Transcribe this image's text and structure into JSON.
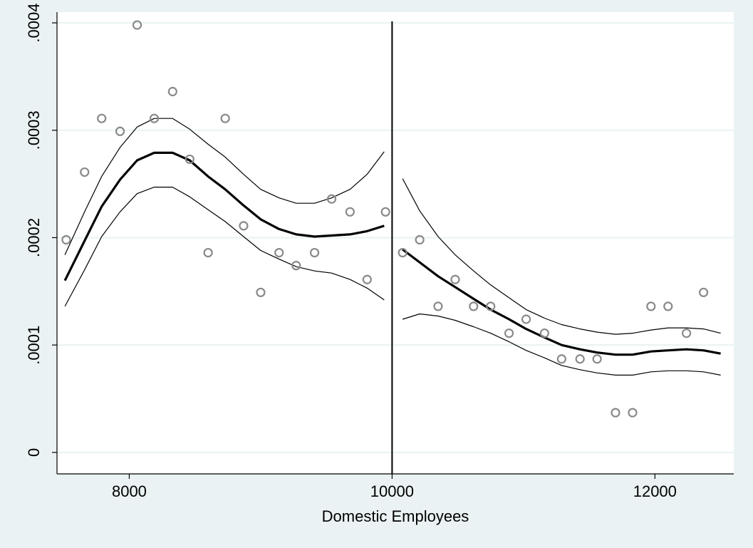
{
  "chart_data": {
    "type": "scatter",
    "title": "",
    "xlabel": "Domestic Employees",
    "ylabel": "",
    "xlim": [
      7450,
      12600
    ],
    "ylim": [
      -2e-05,
      0.00041
    ],
    "x_ticks": [
      8000,
      10000,
      12000
    ],
    "x_tick_labels": [
      "8000",
      "10000",
      "12000"
    ],
    "y_ticks": [
      0,
      0.0001,
      0.0002,
      0.0003,
      0.0004
    ],
    "y_tick_labels": [
      "0",
      ".0001",
      ".0002",
      ".0003",
      ".0004"
    ],
    "grid": true,
    "cutoff_x": 10000,
    "colors": {
      "background": "#eaf2f3",
      "plot_background": "#ffffff",
      "grid": "#eaf2f3",
      "points": "#8a8a8a",
      "fit": "#000000"
    },
    "series": [
      {
        "kind": "scatter",
        "points": [
          [
            7520,
            0.000198
          ],
          [
            7660,
            0.000261
          ],
          [
            7790,
            0.000311
          ],
          [
            7930,
            0.000299
          ],
          [
            8060,
            0.000398
          ],
          [
            8190,
            0.000311
          ],
          [
            8330,
            0.000336
          ],
          [
            8460,
            0.000273
          ],
          [
            8600,
            0.000186
          ],
          [
            8730,
            0.000311
          ],
          [
            8870,
            0.000211
          ],
          [
            9000,
            0.000149
          ],
          [
            9140,
            0.000186
          ],
          [
            9270,
            0.000174
          ],
          [
            9410,
            0.000186
          ],
          [
            9540,
            0.000236
          ],
          [
            9680,
            0.000224
          ],
          [
            9810,
            0.000161
          ],
          [
            9950,
            0.000224
          ],
          [
            10080,
            0.000186
          ],
          [
            10210,
            0.000198
          ],
          [
            10350,
            0.000136
          ],
          [
            10480,
            0.000161
          ],
          [
            10620,
            0.000136
          ],
          [
            10750,
            0.000136
          ],
          [
            10890,
            0.000111
          ],
          [
            11020,
            0.000124
          ],
          [
            11160,
            0.000111
          ],
          [
            11290,
            8.7e-05
          ],
          [
            11430,
            8.7e-05
          ],
          [
            11560,
            8.7e-05
          ],
          [
            11700,
            3.7e-05
          ],
          [
            11830,
            3.7e-05
          ],
          [
            11970,
            0.000136
          ],
          [
            12100,
            0.000136
          ],
          [
            12240,
            0.000111
          ],
          [
            12370,
            0.000149
          ]
        ]
      },
      {
        "kind": "fit",
        "segment": "left",
        "x": [
          7510,
          7660,
          7790,
          7930,
          8060,
          8190,
          8330,
          8460,
          8600,
          8730,
          8870,
          9000,
          9140,
          9270,
          9410,
          9540,
          9680,
          9810,
          9940
        ],
        "fit": [
          0.00016,
          0.000197,
          0.000229,
          0.000254,
          0.000272,
          0.000279,
          0.000279,
          0.000272,
          0.000257,
          0.000245,
          0.00023,
          0.000217,
          0.000208,
          0.000203,
          0.000201,
          0.000202,
          0.000203,
          0.000206,
          0.000211
        ],
        "upper": [
          0.000184,
          0.000224,
          0.000257,
          0.000284,
          0.000303,
          0.000311,
          0.000311,
          0.000301,
          0.000287,
          0.000275,
          0.000259,
          0.000245,
          0.000237,
          0.000232,
          0.000232,
          0.000237,
          0.000245,
          0.000259,
          0.00028
        ],
        "lower": [
          0.000136,
          0.00017,
          0.000201,
          0.000224,
          0.000241,
          0.000247,
          0.000247,
          0.000238,
          0.000226,
          0.000215,
          0.000201,
          0.000188,
          0.00018,
          0.000173,
          0.000169,
          0.000167,
          0.000161,
          0.000153,
          0.000142
        ]
      },
      {
        "kind": "fit",
        "segment": "right",
        "x": [
          10080,
          10210,
          10350,
          10480,
          10620,
          10750,
          10890,
          11020,
          11160,
          11290,
          11430,
          11560,
          11700,
          11830,
          11970,
          12100,
          12240,
          12370,
          12500
        ],
        "fit": [
          0.000189,
          0.000177,
          0.000164,
          0.000154,
          0.000143,
          0.000133,
          0.000124,
          0.000115,
          0.000107,
          0.0001,
          9.6e-05,
          9.3e-05,
          9.1e-05,
          9.1e-05,
          9.4e-05,
          9.5e-05,
          9.6e-05,
          9.5e-05,
          9.2e-05
        ],
        "upper": [
          0.000255,
          0.000225,
          0.000201,
          0.000184,
          0.000169,
          0.000156,
          0.000144,
          0.000133,
          0.000125,
          0.000119,
          0.000115,
          0.000112,
          0.00011,
          0.000111,
          0.000114,
          0.000116,
          0.000116,
          0.000115,
          0.000111
        ],
        "lower": [
          0.000124,
          0.000129,
          0.000127,
          0.000123,
          0.000117,
          0.000111,
          0.000103,
          9.5e-05,
          8.8e-05,
          8.1e-05,
          7.7e-05,
          7.4e-05,
          7.2e-05,
          7.2e-05,
          7.5e-05,
          7.6e-05,
          7.6e-05,
          7.5e-05,
          7.2e-05
        ]
      }
    ]
  }
}
